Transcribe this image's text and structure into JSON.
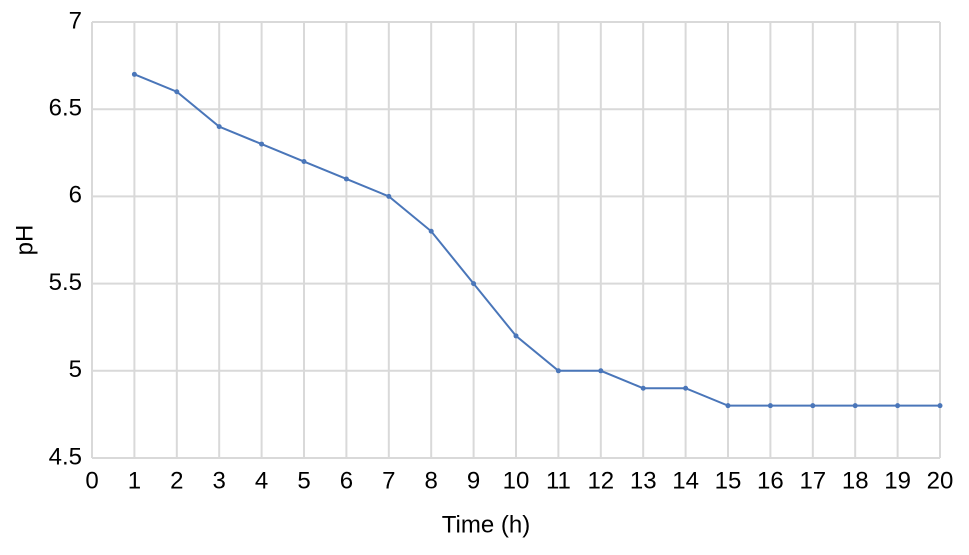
{
  "chart_data": {
    "type": "line",
    "xlabel": "Time (h)",
    "ylabel": "pH",
    "x": [
      1,
      2,
      3,
      4,
      5,
      6,
      7,
      8,
      9,
      10,
      11,
      12,
      13,
      14,
      15,
      16,
      17,
      18,
      19,
      20
    ],
    "values": [
      6.7,
      6.6,
      6.4,
      6.3,
      6.2,
      6.1,
      6.0,
      5.8,
      5.5,
      5.2,
      5.0,
      5.0,
      4.9,
      4.9,
      4.8,
      4.8,
      4.8,
      4.8,
      4.8,
      4.8
    ],
    "color": "#4a76b9",
    "xlim": [
      0,
      20
    ],
    "xticks": [
      0,
      1,
      2,
      3,
      4,
      5,
      6,
      7,
      8,
      9,
      10,
      11,
      12,
      13,
      14,
      15,
      16,
      17,
      18,
      19,
      20
    ],
    "ylim": [
      4.5,
      7
    ],
    "yticks": [
      4.5,
      5,
      5.5,
      6,
      6.5,
      7
    ],
    "grid": true
  }
}
